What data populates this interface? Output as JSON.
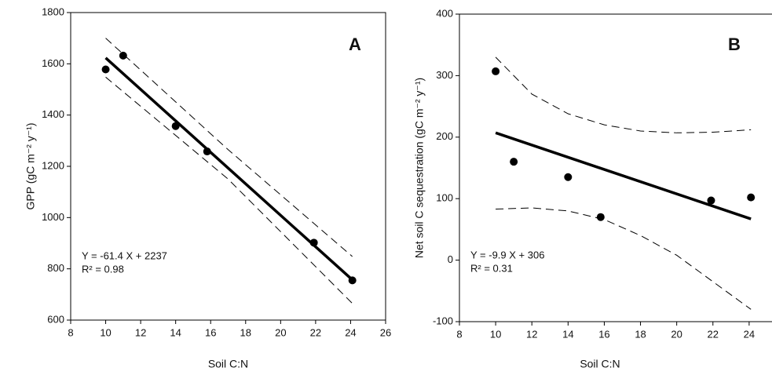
{
  "chart_data": [
    {
      "type": "scatter",
      "panel_label": "A",
      "x_label": "Soil C:N",
      "y_label": "GPP (gC m⁻² y⁻¹)",
      "annotations": [
        "Y = -61.4 X + 2237",
        "R² = 0.98"
      ],
      "xlim": [
        8,
        26
      ],
      "xticks": [
        8,
        10,
        12,
        14,
        16,
        18,
        20,
        22,
        24,
        26
      ],
      "ylim": [
        600,
        1800
      ],
      "yticks": [
        600,
        800,
        1000,
        1200,
        1400,
        1600,
        1800
      ],
      "color": "#000000",
      "points": {
        "x": [
          10,
          11,
          14,
          15.8,
          21.9,
          24.1
        ],
        "y": [
          1578,
          1632,
          1357,
          1258,
          902,
          755
        ]
      },
      "fit": {
        "x": [
          10,
          24.1
        ],
        "y": [
          1623,
          757
        ]
      },
      "upper": {
        "x": [
          10,
          17,
          24.1
        ],
        "y": [
          1700,
          1265,
          848
        ]
      },
      "lower": {
        "x": [
          10,
          17,
          24.1
        ],
        "y": [
          1548,
          1150,
          665
        ]
      }
    },
    {
      "type": "scatter",
      "panel_label": "B",
      "x_label": "Soil C:N",
      "y_label": "Net soil C sequestration (gC m⁻² y⁻¹)",
      "annotations": [
        "Y = -9.9 X + 306",
        "R² = 0.31"
      ],
      "xlim": [
        8,
        26
      ],
      "xticks": [
        8,
        10,
        12,
        14,
        16,
        18,
        20,
        22,
        24,
        26
      ],
      "ylim": [
        -100,
        400
      ],
      "yticks": [
        -100,
        0,
        100,
        200,
        300,
        400
      ],
      "color": "#000000",
      "points": {
        "x": [
          10,
          11,
          14,
          15.8,
          21.9,
          24.1
        ],
        "y": [
          307,
          160,
          135,
          70,
          97,
          102
        ]
      },
      "fit": {
        "x": [
          10,
          24.1
        ],
        "y": [
          207,
          67
        ]
      },
      "upper": {
        "x": [
          10,
          12,
          14,
          16,
          18,
          20,
          22,
          24.1
        ],
        "y": [
          330,
          270,
          238,
          220,
          210,
          207,
          208,
          212
        ]
      },
      "lower": {
        "x": [
          10,
          12,
          14,
          16,
          18,
          20,
          22,
          24.1
        ],
        "y": [
          83,
          85,
          80,
          66,
          40,
          8,
          -35,
          -80
        ]
      }
    }
  ]
}
